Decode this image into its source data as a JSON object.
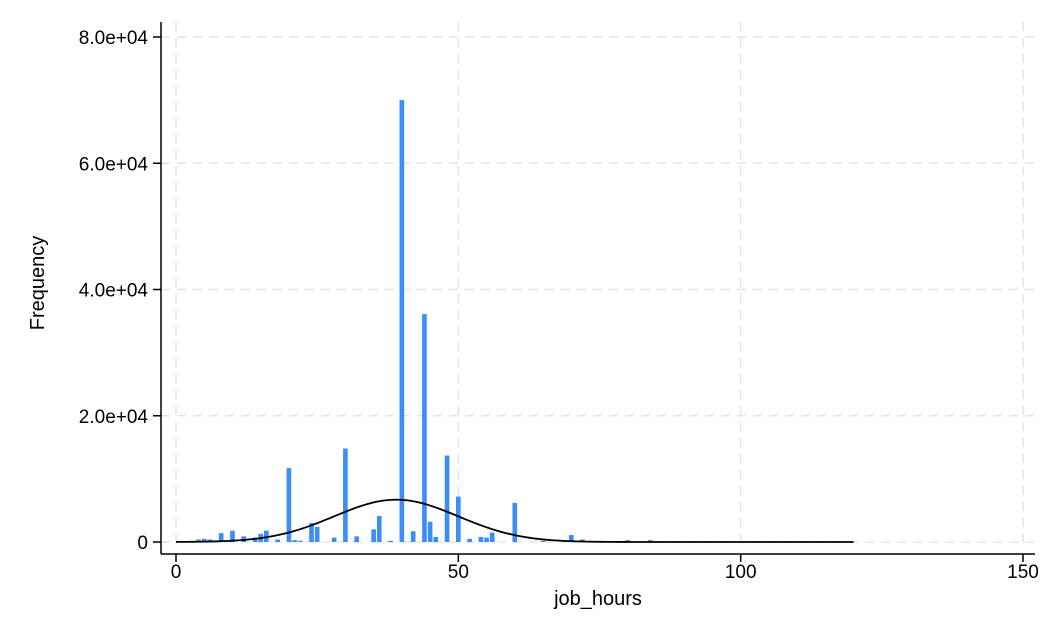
{
  "chart_data": {
    "type": "bar",
    "title": "",
    "xlabel": "job_hours",
    "ylabel": "Frequency",
    "xlim": [
      0,
      150
    ],
    "ylim": [
      0,
      80000
    ],
    "x_ticks": [
      0,
      50,
      100,
      150
    ],
    "x_tick_labels": [
      "0",
      "50",
      "100",
      "150"
    ],
    "y_ticks": [
      0,
      20000,
      40000,
      60000,
      80000
    ],
    "y_tick_labels": [
      "0",
      "2.0e+04",
      "4.0e+04",
      "6.0e+04",
      "8.0e+04"
    ],
    "grid": true,
    "colors": {
      "bars": "#3a8ef5",
      "curve": "#000000",
      "grid": "#e3e3e3",
      "axis": "#000000"
    },
    "histogram": {
      "bin_width": 1,
      "bins": [
        {
          "x": 4,
          "count": 400
        },
        {
          "x": 5,
          "count": 500
        },
        {
          "x": 6,
          "count": 400
        },
        {
          "x": 8,
          "count": 1400
        },
        {
          "x": 10,
          "count": 1800
        },
        {
          "x": 12,
          "count": 900
        },
        {
          "x": 14,
          "count": 700
        },
        {
          "x": 15,
          "count": 1300
        },
        {
          "x": 16,
          "count": 1800
        },
        {
          "x": 18,
          "count": 400
        },
        {
          "x": 20,
          "count": 11700
        },
        {
          "x": 21,
          "count": 300
        },
        {
          "x": 22,
          "count": 200
        },
        {
          "x": 24,
          "count": 3000
        },
        {
          "x": 25,
          "count": 2400
        },
        {
          "x": 28,
          "count": 700
        },
        {
          "x": 30,
          "count": 14800
        },
        {
          "x": 32,
          "count": 900
        },
        {
          "x": 35,
          "count": 2000
        },
        {
          "x": 36,
          "count": 4100
        },
        {
          "x": 38,
          "count": 200
        },
        {
          "x": 40,
          "count": 70000
        },
        {
          "x": 42,
          "count": 1700
        },
        {
          "x": 44,
          "count": 36100
        },
        {
          "x": 45,
          "count": 3200
        },
        {
          "x": 46,
          "count": 800
        },
        {
          "x": 48,
          "count": 13700
        },
        {
          "x": 50,
          "count": 7200
        },
        {
          "x": 52,
          "count": 500
        },
        {
          "x": 54,
          "count": 800
        },
        {
          "x": 55,
          "count": 700
        },
        {
          "x": 56,
          "count": 1500
        },
        {
          "x": 60,
          "count": 6200
        },
        {
          "x": 65,
          "count": 200
        },
        {
          "x": 70,
          "count": 1100
        },
        {
          "x": 72,
          "count": 400
        },
        {
          "x": 80,
          "count": 300
        },
        {
          "x": 84,
          "count": 300
        }
      ]
    },
    "normal_curve": {
      "mean": 39,
      "sd": 11,
      "peak": 6700,
      "x_range": [
        0,
        120
      ]
    }
  }
}
